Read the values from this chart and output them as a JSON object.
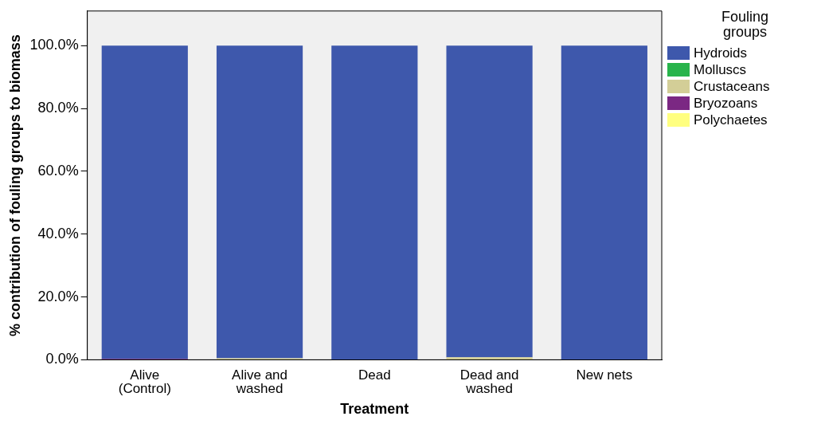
{
  "chart_data": {
    "type": "bar",
    "stacked": true,
    "xlabel": "Treatment",
    "ylabel": "% contribution of fouling groups to biomass",
    "legend_title": "Fouling\ngroups",
    "legend": "right",
    "grid": false,
    "categories": [
      "Alive\n(Control)",
      "Alive and\nwashed",
      "Dead",
      "Dead and\nwashed",
      "New nets"
    ],
    "ylim": [
      0,
      111
    ],
    "yticks": [
      {
        "value": 0,
        "label": "0.0%"
      },
      {
        "value": 20,
        "label": "20.0%"
      },
      {
        "value": 40,
        "label": "40.0%"
      },
      {
        "value": 60,
        "label": "60.0%"
      },
      {
        "value": 80,
        "label": "80.0%"
      },
      {
        "value": 100,
        "label": "100.0%"
      }
    ],
    "series": [
      {
        "name": "Polychaetes",
        "color": "#ffff80",
        "values": [
          0,
          0,
          0,
          0,
          0
        ]
      },
      {
        "name": "Bryozoans",
        "color": "#7b2883",
        "values": [
          0.3,
          0,
          0,
          0,
          0
        ]
      },
      {
        "name": "Crustaceans",
        "color": "#d3ce97",
        "values": [
          0,
          0.5,
          0,
          0.8,
          0
        ]
      },
      {
        "name": "Molluscs",
        "color": "#28b44b",
        "values": [
          0,
          0,
          0,
          0,
          0
        ]
      },
      {
        "name": "Hydroids",
        "color": "#3e58ac",
        "values": [
          99.7,
          99.5,
          100,
          99.2,
          100
        ]
      }
    ]
  }
}
